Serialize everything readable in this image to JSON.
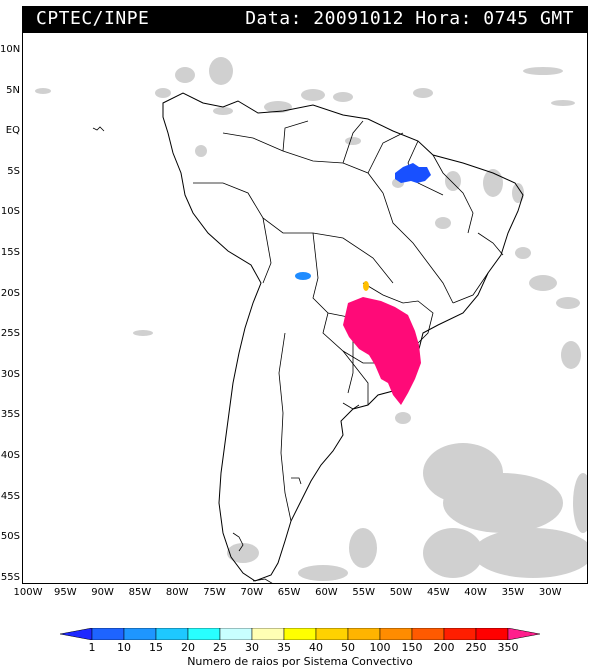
{
  "header": {
    "title": "CPTEC/INPE",
    "info": "Data: 20091012 Hora: 0745 GMT"
  },
  "map": {
    "latitude_labels": [
      "10N",
      "5N",
      "EQ",
      "5S",
      "10S",
      "15S",
      "20S",
      "25S",
      "30S",
      "35S",
      "40S",
      "45S",
      "50S",
      "55S"
    ],
    "longitude_labels": [
      "100W",
      "95W",
      "90W",
      "85W",
      "80W",
      "75W",
      "70W",
      "65W",
      "60W",
      "55W",
      "50W",
      "45W",
      "40W",
      "35W",
      "30W"
    ],
    "clouds_color": "#c8c8c8",
    "convective_systems": [
      {
        "name": "maranhao-system",
        "color": "#1850ff",
        "label_value": "10"
      },
      {
        "name": "bolivia-system",
        "color": "#1f8cff",
        "label_value": "15"
      },
      {
        "name": "mato-grosso-system",
        "color": "#ffbf00",
        "label_value": "50"
      },
      {
        "name": "south-brazil-system",
        "color": "#ff0a78",
        "label_value": "350"
      }
    ]
  },
  "colorbar": {
    "labels": [
      "1",
      "10",
      "15",
      "20",
      "25",
      "30",
      "35",
      "40",
      "50",
      "100",
      "150",
      "200",
      "250",
      "350"
    ],
    "colors": [
      "#1e28ff",
      "#1e64ff",
      "#1e96ff",
      "#1ec8ff",
      "#28ffff",
      "#c8ffff",
      "#ffffb4",
      "#ffff00",
      "#ffd200",
      "#ffb400",
      "#ff8c00",
      "#ff5a00",
      "#ff1e00",
      "#ff0000",
      "#ff1e8c"
    ],
    "title": "Numero de raios por Sistema Convectivo"
  }
}
